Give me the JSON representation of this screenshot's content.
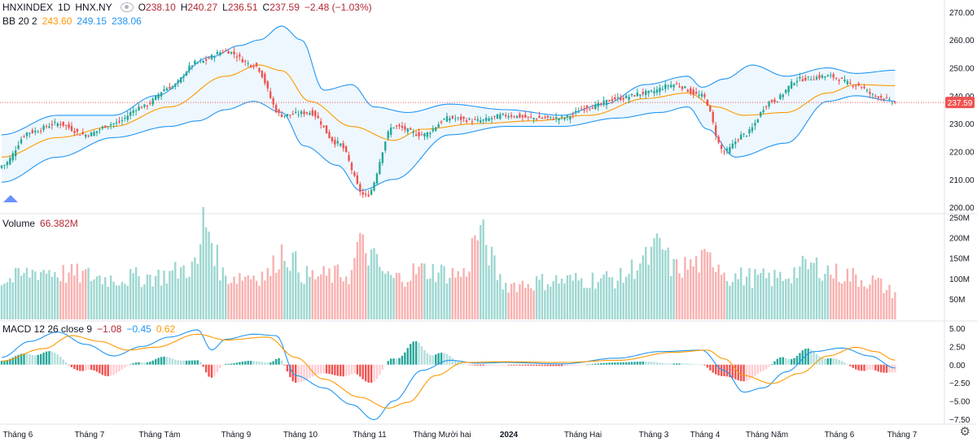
{
  "legend": {
    "symbol": "HNXINDEX",
    "interval": "1D",
    "exchange": "HNX.NY",
    "o_label": "O",
    "o_value": "238.10",
    "h_label": "H",
    "h_value": "240.27",
    "l_label": "L",
    "l_value": "236.51",
    "c_label": "C",
    "c_value": "237.59",
    "change": "−2.48 (−1.03%)",
    "bb_label": "BB 20 2",
    "bb_basis": "243.60",
    "bb_upper": "249.15",
    "bb_lower": "238.06",
    "volume_label": "Volume",
    "volume_value": "66.382M",
    "macd_label": "MACD 12 26 close 9",
    "macd_hist": "−1.08",
    "macd_line": "−0.45",
    "macd_signal": "0.62"
  },
  "colors": {
    "up": "#26a69a",
    "down": "#ef5350",
    "bb_band": "#2196f3",
    "basis": "#ff9800",
    "macd_line": "#2196f3",
    "signal_line": "#ff9800"
  },
  "chart_data": [
    {
      "type": "candlestick",
      "title": "",
      "y_ticks": [
        200,
        210,
        220,
        230,
        240,
        250,
        260,
        270
      ],
      "y_tick_labels": [
        "200.00",
        "210.00",
        "220.00",
        "230.00",
        "240.00",
        "250.00",
        "260.00",
        "270.00"
      ],
      "ylim": [
        198,
        272
      ],
      "last_price": 237.59,
      "last_price_label": "237.59",
      "x_tick_labels": [
        "Tháng 6",
        "Tháng 7",
        "Tháng Tám",
        "Tháng 9",
        "Tháng 10",
        "Tháng 11",
        "Tháng Mười hai",
        "2024",
        "Tháng Hai",
        "Tháng 3",
        "Tháng 4",
        "Tháng Năm",
        "Tháng 6",
        "Tháng 7"
      ],
      "close_anchors": [
        [
          0,
          215
        ],
        [
          10,
          227
        ],
        [
          20,
          230
        ],
        [
          30,
          226
        ],
        [
          40,
          230
        ],
        [
          50,
          236
        ],
        [
          60,
          243
        ],
        [
          70,
          252
        ],
        [
          80,
          256
        ],
        [
          90,
          251
        ],
        [
          100,
          233
        ],
        [
          110,
          234
        ],
        [
          120,
          223
        ],
        [
          130,
          204
        ],
        [
          140,
          229
        ],
        [
          150,
          226
        ],
        [
          160,
          232
        ],
        [
          170,
          231
        ],
        [
          180,
          233
        ],
        [
          190,
          232
        ],
        [
          200,
          232
        ],
        [
          210,
          236
        ],
        [
          220,
          239
        ],
        [
          230,
          241
        ],
        [
          240,
          244
        ],
        [
          250,
          240
        ],
        [
          258,
          220
        ],
        [
          265,
          226
        ],
        [
          275,
          238
        ],
        [
          285,
          246
        ],
        [
          295,
          247
        ],
        [
          305,
          244
        ],
        [
          312,
          240
        ],
        [
          319,
          237.59
        ]
      ],
      "bb_upper_anchors": [
        [
          0,
          226
        ],
        [
          20,
          233
        ],
        [
          40,
          233
        ],
        [
          55,
          240
        ],
        [
          75,
          254
        ],
        [
          85,
          258
        ],
        [
          92,
          260
        ],
        [
          100,
          265
        ],
        [
          107,
          260
        ],
        [
          115,
          242
        ],
        [
          125,
          244
        ],
        [
          133,
          236
        ],
        [
          145,
          234
        ],
        [
          160,
          237
        ],
        [
          180,
          235
        ],
        [
          200,
          233
        ],
        [
          215,
          237
        ],
        [
          230,
          244
        ],
        [
          245,
          247
        ],
        [
          250,
          243
        ],
        [
          258,
          246
        ],
        [
          268,
          251
        ],
        [
          280,
          247
        ],
        [
          295,
          250
        ],
        [
          305,
          248
        ],
        [
          319,
          249.15
        ]
      ],
      "bb_lower_anchors": [
        [
          0,
          209
        ],
        [
          20,
          218
        ],
        [
          40,
          225
        ],
        [
          60,
          229
        ],
        [
          70,
          231
        ],
        [
          80,
          235
        ],
        [
          90,
          238
        ],
        [
          100,
          234
        ],
        [
          108,
          222
        ],
        [
          120,
          215
        ],
        [
          128,
          206
        ],
        [
          140,
          210
        ],
        [
          160,
          226
        ],
        [
          180,
          229
        ],
        [
          200,
          229
        ],
        [
          220,
          232
        ],
        [
          235,
          234
        ],
        [
          245,
          236
        ],
        [
          252,
          228
        ],
        [
          262,
          218
        ],
        [
          280,
          223
        ],
        [
          295,
          238
        ],
        [
          305,
          240
        ],
        [
          319,
          238.06
        ]
      ],
      "basis_anchors": [
        [
          0,
          218
        ],
        [
          20,
          225
        ],
        [
          40,
          229
        ],
        [
          60,
          236
        ],
        [
          80,
          247
        ],
        [
          92,
          251
        ],
        [
          100,
          249
        ],
        [
          110,
          238
        ],
        [
          125,
          229
        ],
        [
          140,
          224
        ],
        [
          150,
          228
        ],
        [
          170,
          230
        ],
        [
          190,
          231
        ],
        [
          210,
          233
        ],
        [
          230,
          239
        ],
        [
          245,
          241
        ],
        [
          255,
          236
        ],
        [
          265,
          233
        ],
        [
          280,
          234
        ],
        [
          295,
          241
        ],
        [
          305,
          244
        ],
        [
          319,
          243.6
        ]
      ]
    },
    {
      "type": "bar",
      "title": "",
      "y_tick_labels": [
        "50M",
        "100M",
        "150M",
        "200M",
        "250M"
      ],
      "y_ticks": [
        50,
        100,
        150,
        200,
        250
      ],
      "ylim": [
        0,
        255
      ],
      "unit": "M",
      "last_value": 66.382,
      "volume_anchors": [
        [
          0,
          95
        ],
        [
          15,
          120
        ],
        [
          25,
          110
        ],
        [
          40,
          100
        ],
        [
          55,
          105
        ],
        [
          70,
          130
        ],
        [
          72,
          240
        ],
        [
          80,
          105
        ],
        [
          95,
          110
        ],
        [
          100,
          165
        ],
        [
          110,
          105
        ],
        [
          125,
          110
        ],
        [
          127,
          180
        ],
        [
          140,
          100
        ],
        [
          150,
          120
        ],
        [
          165,
          110
        ],
        [
          170,
          210
        ],
        [
          180,
          85
        ],
        [
          200,
          95
        ],
        [
          220,
          100
        ],
        [
          230,
          145
        ],
        [
          235,
          180
        ],
        [
          240,
          125
        ],
        [
          255,
          145
        ],
        [
          260,
          105
        ],
        [
          275,
          100
        ],
        [
          290,
          130
        ],
        [
          300,
          110
        ],
        [
          310,
          95
        ],
        [
          319,
          66.382
        ]
      ]
    },
    {
      "type": "line",
      "title": "",
      "y_tick_labels": [
        "−7.50",
        "−5.00",
        "−2.50",
        "0.00",
        "2.50",
        "5.00"
      ],
      "y_ticks": [
        -7.5,
        -5,
        -2.5,
        0,
        2.5,
        5
      ],
      "ylim": [
        -8.2,
        5.8
      ],
      "macd_anchors": [
        [
          0,
          1.0
        ],
        [
          10,
          3.2
        ],
        [
          20,
          4.5
        ],
        [
          30,
          2.8
        ],
        [
          40,
          1.2
        ],
        [
          50,
          2.5
        ],
        [
          60,
          3.8
        ],
        [
          70,
          4.8
        ],
        [
          75,
          2.0
        ],
        [
          80,
          3.5
        ],
        [
          90,
          4.2
        ],
        [
          98,
          4.0
        ],
        [
          105,
          -1.5
        ],
        [
          115,
          -3.2
        ],
        [
          125,
          -5.5
        ],
        [
          133,
          -7.6
        ],
        [
          140,
          -5.0
        ],
        [
          150,
          -0.8
        ],
        [
          160,
          0.6
        ],
        [
          170,
          0.2
        ],
        [
          180,
          0.3
        ],
        [
          200,
          0.1
        ],
        [
          220,
          0.9
        ],
        [
          235,
          1.8
        ],
        [
          250,
          2.0
        ],
        [
          258,
          -0.8
        ],
        [
          265,
          -3.8
        ],
        [
          272,
          -3.2
        ],
        [
          280,
          -1.0
        ],
        [
          290,
          1.8
        ],
        [
          300,
          2.3
        ],
        [
          310,
          1.2
        ],
        [
          319,
          -0.45
        ]
      ],
      "signal_anchors": [
        [
          0,
          0.5
        ],
        [
          15,
          2.2
        ],
        [
          25,
          4.0
        ],
        [
          35,
          3.2
        ],
        [
          45,
          2.0
        ],
        [
          55,
          2.4
        ],
        [
          70,
          4.2
        ],
        [
          80,
          3.4
        ],
        [
          95,
          3.8
        ],
        [
          105,
          1.0
        ],
        [
          115,
          -2.0
        ],
        [
          128,
          -4.5
        ],
        [
          138,
          -6.0
        ],
        [
          145,
          -5.2
        ],
        [
          155,
          -1.5
        ],
        [
          165,
          0.3
        ],
        [
          180,
          0.4
        ],
        [
          200,
          0.3
        ],
        [
          220,
          0.6
        ],
        [
          240,
          1.7
        ],
        [
          252,
          2.0
        ],
        [
          258,
          0.8
        ],
        [
          265,
          -1.5
        ],
        [
          275,
          -2.6
        ],
        [
          285,
          -1.2
        ],
        [
          295,
          1.2
        ],
        [
          305,
          2.4
        ],
        [
          312,
          1.8
        ],
        [
          319,
          0.62
        ]
      ]
    }
  ]
}
